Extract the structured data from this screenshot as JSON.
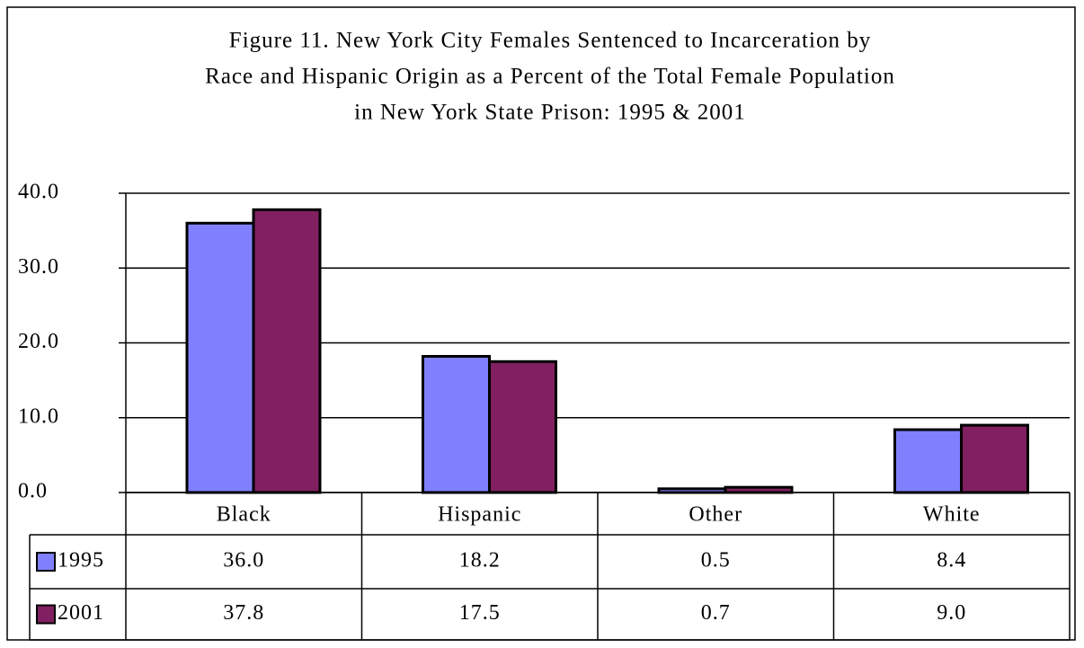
{
  "chart_data": {
    "type": "bar",
    "title": [
      "Figure 11.  New York City Females Sentenced to Incarceration by",
      "Race and Hispanic Origin as a Percent of the Total Female Population",
      "in New York State Prison: 1995 & 2001"
    ],
    "categories": [
      "Black",
      "Hispanic",
      "Other",
      "White"
    ],
    "series": [
      {
        "name": "1995",
        "color": "#8080ff",
        "values": [
          36.0,
          18.2,
          0.5,
          8.4
        ],
        "value_labels": [
          "36.0",
          "18.2",
          "0.5",
          "8.4"
        ]
      },
      {
        "name": "2001",
        "color": "#802060",
        "values": [
          37.8,
          17.5,
          0.7,
          9.0
        ],
        "value_labels": [
          "37.8",
          "17.5",
          "0.7",
          "9.0"
        ]
      }
    ],
    "ylim": [
      0,
      40
    ],
    "yticks": [
      {
        "value": 0,
        "label": "0.0"
      },
      {
        "value": 10,
        "label": "10.0"
      },
      {
        "value": 20,
        "label": "20.0"
      },
      {
        "value": 30,
        "label": "30.0"
      },
      {
        "value": 40,
        "label": "40.0"
      }
    ],
    "grid": true
  }
}
